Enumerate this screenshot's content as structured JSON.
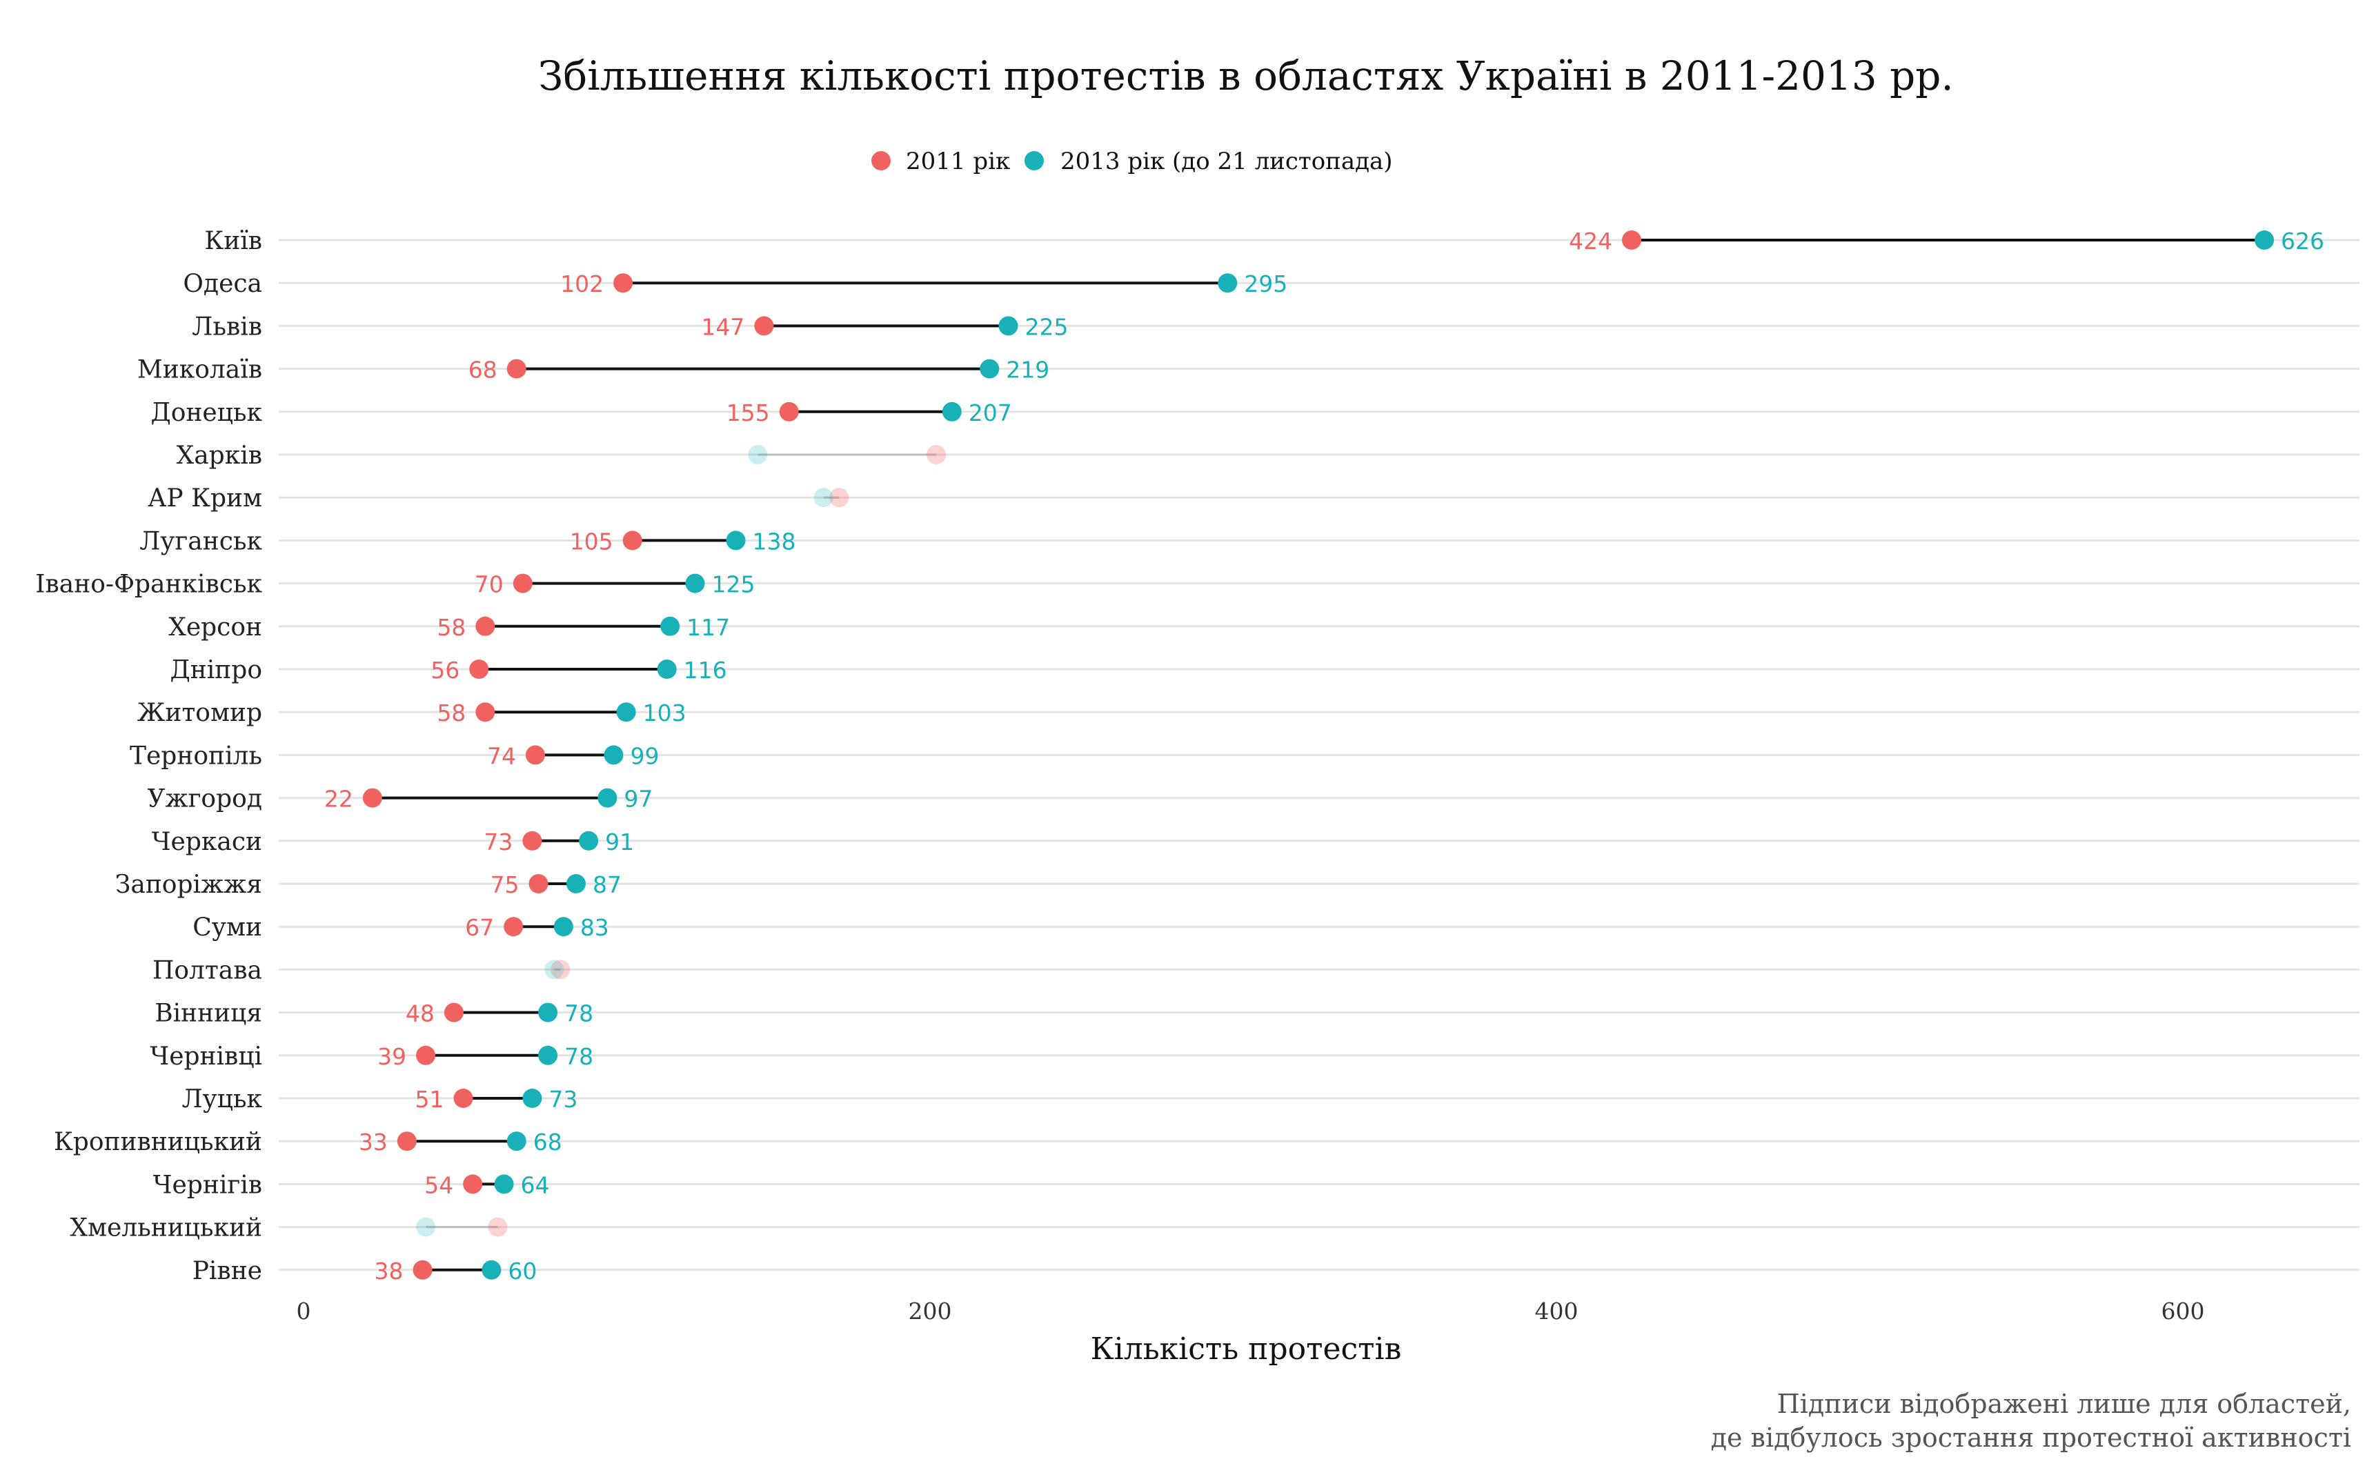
{
  "chart_data": {
    "type": "dumbbell",
    "title": "Збільшення кількості протестів в областях Україні в 2011-2013 рр.",
    "xlabel": "Кількість протестів",
    "ylabel": "",
    "xlim": [
      0,
      626
    ],
    "x_ticks": [
      0,
      200,
      400,
      600
    ],
    "grid": "horizontal",
    "legend_position": "top",
    "caption": [
      "Підписи відображені лише для областей,",
      "де відбулось зростання протестної активності"
    ],
    "series": [
      {
        "name": "2011 рік",
        "color": "#f0625f"
      },
      {
        "name": "2013 рік (до 21 листопада)",
        "color": "#19b1b8"
      }
    ],
    "regions": [
      {
        "name": "Київ",
        "v2011": 424,
        "v2013": 626,
        "increase": true
      },
      {
        "name": "Одеса",
        "v2011": 102,
        "v2013": 295,
        "increase": true
      },
      {
        "name": "Львів",
        "v2011": 147,
        "v2013": 225,
        "increase": true
      },
      {
        "name": "Миколаїв",
        "v2011": 68,
        "v2013": 219,
        "increase": true
      },
      {
        "name": "Донецьк",
        "v2011": 155,
        "v2013": 207,
        "increase": true
      },
      {
        "name": "Харків",
        "v2011": 202,
        "v2013": 145,
        "increase": false
      },
      {
        "name": "АР Крим",
        "v2011": 171,
        "v2013": 166,
        "increase": false
      },
      {
        "name": "Луганськ",
        "v2011": 105,
        "v2013": 138,
        "increase": true
      },
      {
        "name": "Івано-Франківськ",
        "v2011": 70,
        "v2013": 125,
        "increase": true
      },
      {
        "name": "Херсон",
        "v2011": 58,
        "v2013": 117,
        "increase": true
      },
      {
        "name": "Дніпро",
        "v2011": 56,
        "v2013": 116,
        "increase": true
      },
      {
        "name": "Житомир",
        "v2011": 58,
        "v2013": 103,
        "increase": true
      },
      {
        "name": "Тернопіль",
        "v2011": 74,
        "v2013": 99,
        "increase": true
      },
      {
        "name": "Ужгород",
        "v2011": 22,
        "v2013": 97,
        "increase": true
      },
      {
        "name": "Черкаси",
        "v2011": 73,
        "v2013": 91,
        "increase": true
      },
      {
        "name": "Запоріжжя",
        "v2011": 75,
        "v2013": 87,
        "increase": true
      },
      {
        "name": "Суми",
        "v2011": 67,
        "v2013": 83,
        "increase": true
      },
      {
        "name": "Полтава",
        "v2011": 82,
        "v2013": 80,
        "increase": false
      },
      {
        "name": "Вінниця",
        "v2011": 48,
        "v2013": 78,
        "increase": true
      },
      {
        "name": "Чернівці",
        "v2011": 39,
        "v2013": 78,
        "increase": true
      },
      {
        "name": "Луцьк",
        "v2011": 51,
        "v2013": 73,
        "increase": true
      },
      {
        "name": "Кропивницький",
        "v2011": 33,
        "v2013": 68,
        "increase": true
      },
      {
        "name": "Чернігів",
        "v2011": 54,
        "v2013": 64,
        "increase": true
      },
      {
        "name": "Хмельницький",
        "v2011": 62,
        "v2013": 39,
        "increase": false
      },
      {
        "name": "Рівне",
        "v2011": 38,
        "v2013": 60,
        "increase": true
      }
    ]
  }
}
